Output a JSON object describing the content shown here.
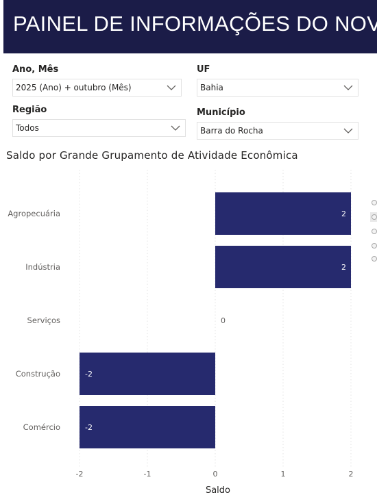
{
  "header": {
    "title": "PAINEL DE INFORMAÇÕES DO NOVO"
  },
  "filters": {
    "ano_mes": {
      "label": "Ano, Mês",
      "value": "2025 (Ano) + outubro (Mês)"
    },
    "uf": {
      "label": "UF",
      "value": "Bahia"
    },
    "regiao": {
      "label": "Região",
      "value": "Todos"
    },
    "municipio": {
      "label": "Município",
      "value": "Barra do Rocha"
    }
  },
  "chart_data": {
    "type": "bar",
    "orientation": "horizontal",
    "title": "Saldo por Grande Grupamento de Atividade Econômica",
    "categories": [
      "Agropecuária",
      "Indústria",
      "Serviços",
      "Construção",
      "Comércio"
    ],
    "values": [
      2,
      2,
      0,
      -2,
      -2
    ],
    "data_labels": [
      "2",
      "2",
      "0",
      "-2",
      "-2"
    ],
    "xlabel": "Saldo",
    "ylabel": "",
    "xlim": [
      -2,
      2
    ],
    "xticks": [
      "-2",
      "-1",
      "0",
      "1",
      "2"
    ],
    "grid": "vertical-dotted",
    "colors": {
      "bar": "#262a6e",
      "grid": "#e3e3e3",
      "label": "#605e5c"
    }
  }
}
